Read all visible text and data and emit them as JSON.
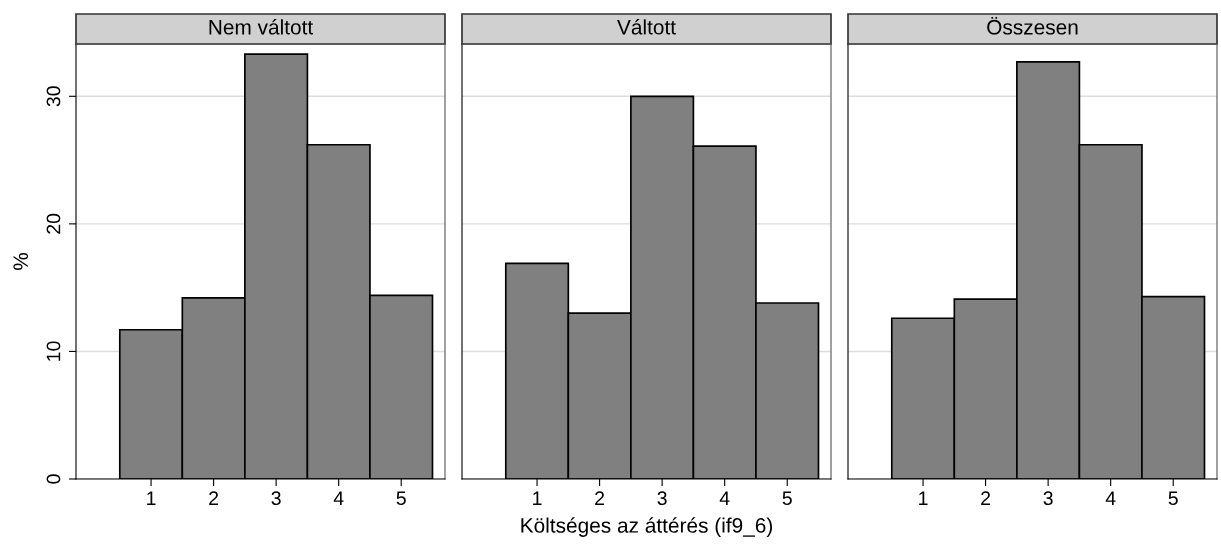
{
  "chart_data": [
    {
      "type": "histogram",
      "title": "Nem váltott",
      "ylabel": "%",
      "bins": [
        0.5,
        1.5,
        2.5,
        3.5,
        4.5,
        5.5
      ],
      "values": [
        11.7,
        14.2,
        33.3,
        26.2,
        14.4
      ],
      "color": "#808080",
      "xlim": [
        -0.2,
        5.7
      ],
      "xticks": [
        1,
        2,
        3,
        4,
        5
      ],
      "ylim": [
        0,
        34.1
      ],
      "yticks": [
        0,
        10,
        20,
        30
      ],
      "grid": "y"
    },
    {
      "type": "histogram",
      "title": "Váltott",
      "xlabel": "Költséges az áttérés (if9_6)",
      "bins": [
        0.5,
        1.5,
        2.5,
        3.5,
        4.5,
        5.5
      ],
      "values": [
        16.9,
        13.0,
        30.0,
        26.1,
        13.8
      ],
      "color": "#808080",
      "xlim": [
        -0.2,
        5.7
      ],
      "xticks": [
        1,
        2,
        3,
        4,
        5
      ],
      "ylim": [
        0,
        34.1
      ],
      "yticks": [
        0,
        10,
        20,
        30
      ],
      "grid": "y",
      "tick_labels": "x"
    },
    {
      "type": "histogram",
      "title": "Összesen",
      "bins": [
        0.5,
        1.5,
        2.5,
        3.5,
        4.5,
        5.5
      ],
      "values": [
        12.6,
        14.1,
        32.7,
        26.2,
        14.3
      ],
      "color": "#808080",
      "xlim": [
        -0.2,
        5.7
      ],
      "xticks": [
        1,
        2,
        3,
        4,
        5
      ],
      "ylim": [
        0,
        34.1
      ],
      "yticks": [
        0,
        10,
        20,
        30
      ],
      "grid": "y",
      "tick_labels": "x"
    }
  ]
}
